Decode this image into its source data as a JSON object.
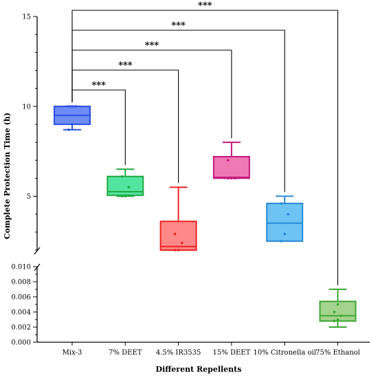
{
  "chart_data": {
    "type": "box",
    "xlabel": "Different Repellents",
    "ylabel": "Complete Protection Time (h)",
    "axis_break": true,
    "upper_segment": {
      "ylim": [
        2,
        15
      ],
      "ticks": [
        "5",
        "10",
        "15"
      ]
    },
    "lower_segment": {
      "ylim": [
        0,
        0.01
      ],
      "ticks": [
        "0.000",
        "0.002",
        "0.004",
        "0.006",
        "0.008",
        "0.010"
      ]
    },
    "grid": false,
    "legend": "none",
    "categories": [
      "Mix-3",
      "7% DEET",
      "4.5% IR3535",
      "15% DEET",
      "10% Citronella oil",
      "75% Ethanol"
    ],
    "series": [
      {
        "segment": "upper",
        "min": 8.7,
        "q1": 9.0,
        "median": 9.5,
        "q3": 10.0,
        "max": 10.0,
        "points": [
          8.7,
          9.0,
          10.0,
          10.0,
          10.0
        ],
        "color": "#2a4fe0",
        "fill": "#6d8cf5"
      },
      {
        "segment": "upper",
        "min": 5.0,
        "q1": 5.05,
        "median": 5.25,
        "q3": 6.1,
        "max": 6.5,
        "points": [
          5.0,
          5.0,
          5.5,
          6.1
        ],
        "color": "#1fa843",
        "fill": "#55e4a0"
      },
      {
        "segment": "upper",
        "min": 2.0,
        "q1": 2.0,
        "median": 2.2,
        "q3": 3.6,
        "max": 5.5,
        "points": [
          2.0,
          2.0,
          2.4,
          2.9
        ],
        "color": "#ee2222",
        "fill": "#ff8888"
      },
      {
        "segment": "upper",
        "min": 6.0,
        "q1": 6.0,
        "median": 6.05,
        "q3": 7.2,
        "max": 8.0,
        "points": [
          6.0,
          6.0,
          6.0,
          7.0
        ],
        "color": "#c2187c",
        "fill": "#f078b4"
      },
      {
        "segment": "upper",
        "min": 2.5,
        "q1": 2.5,
        "median": 3.5,
        "q3": 4.6,
        "max": 5.0,
        "points": [
          2.5,
          2.9,
          4.0,
          4.6
        ],
        "color": "#2a8ad6",
        "fill": "#6cc3f4"
      },
      {
        "segment": "lower",
        "min": 0.002,
        "q1": 0.0028,
        "median": 0.0035,
        "q3": 0.0054,
        "max": 0.007,
        "points": [
          0.0028,
          0.003,
          0.0035,
          0.004,
          0.005
        ],
        "color": "#3fa535",
        "fill": "#a3d38c"
      }
    ],
    "comparisons": [
      {
        "from": 0,
        "to": 1,
        "label": "***"
      },
      {
        "from": 0,
        "to": 2,
        "label": "***"
      },
      {
        "from": 0,
        "to": 3,
        "label": "***"
      },
      {
        "from": 0,
        "to": 4,
        "label": "***"
      },
      {
        "from": 0,
        "to": 5,
        "label": "***"
      }
    ]
  }
}
